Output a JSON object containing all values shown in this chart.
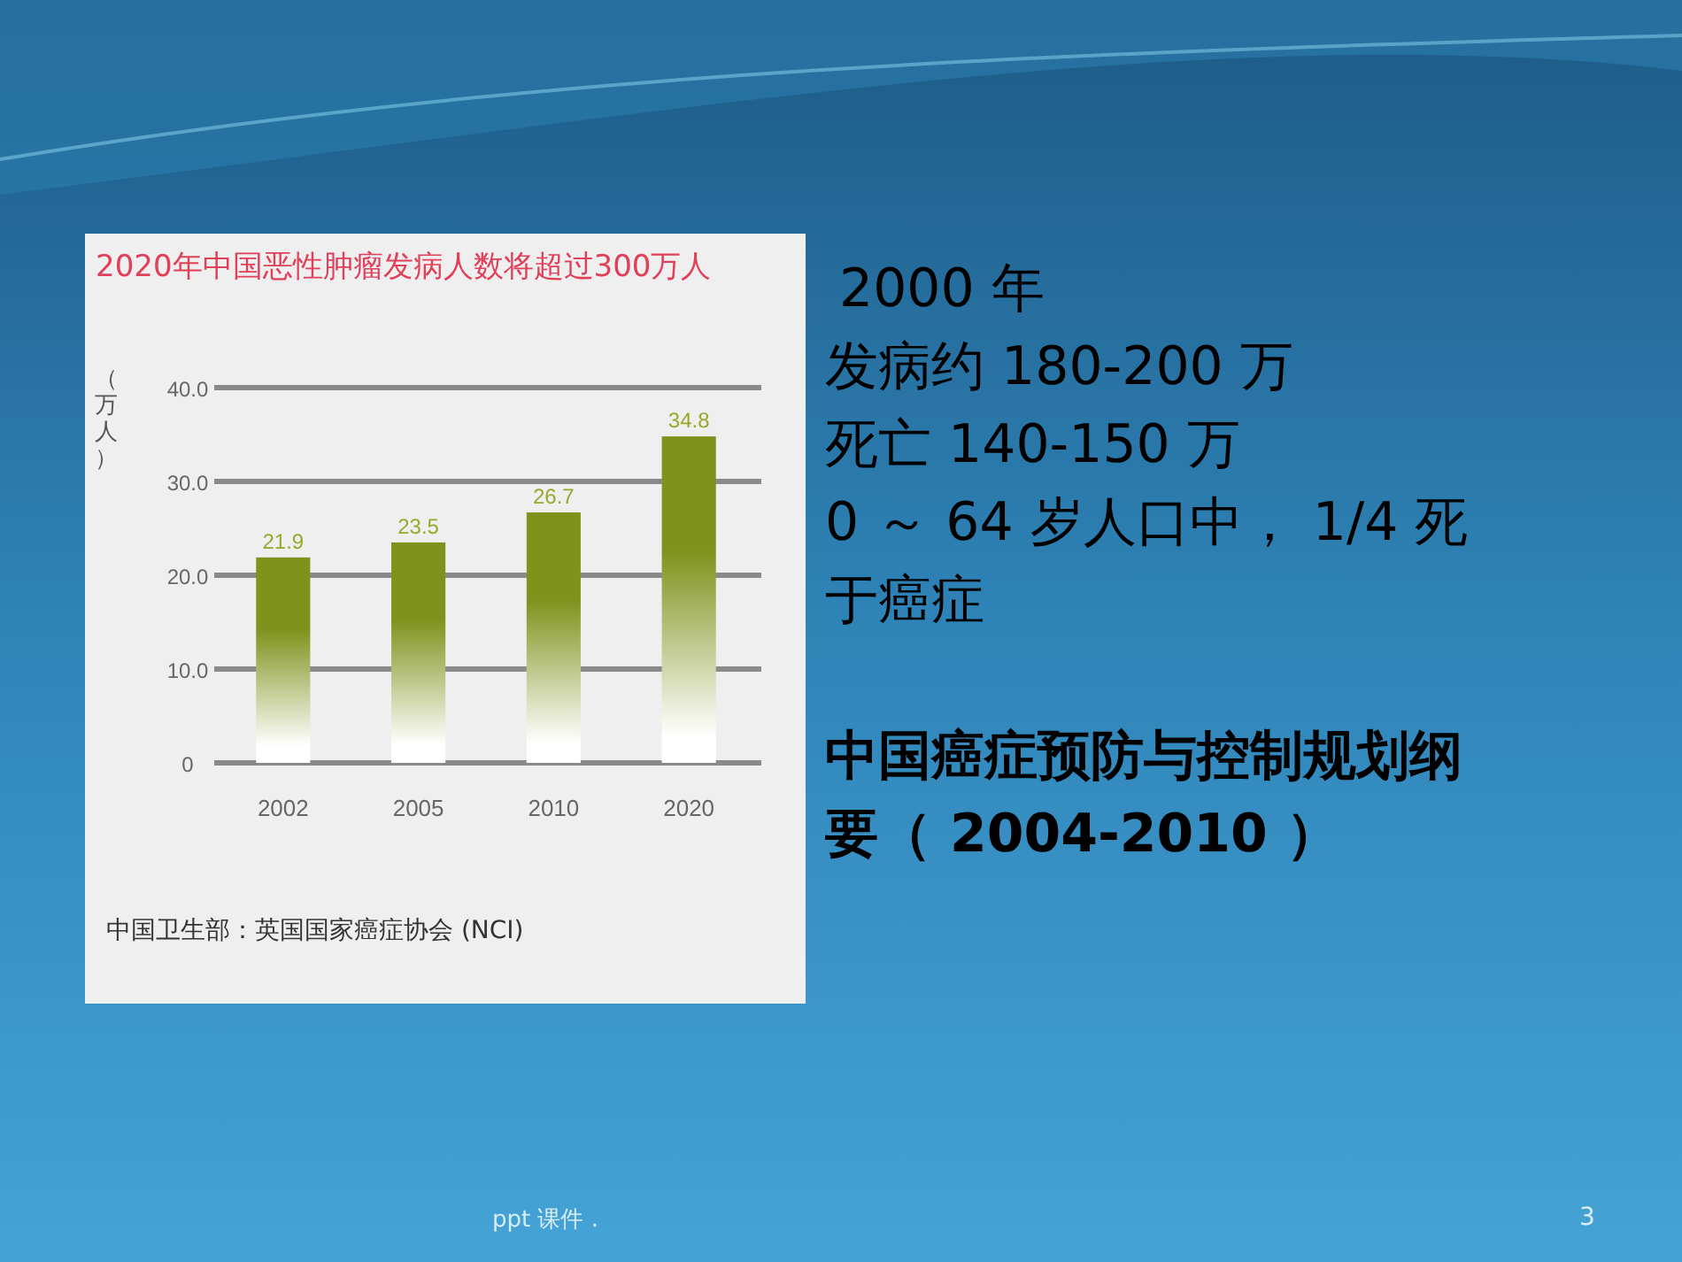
{
  "chart_data": [
    {
      "type": "bar",
      "title": "2020年中国恶性肿瘤发病人数将超过300万人",
      "ylabel": "（万人）",
      "categories": [
        "2002",
        "2005",
        "2010",
        "2020"
      ],
      "values": [
        21.9,
        23.5,
        26.7,
        34.8
      ],
      "color": "#7f921c",
      "ylim": [
        0,
        40
      ],
      "yticks": [
        0,
        {
          "value": 10,
          "label": "10.0"
        },
        {
          "value": 20,
          "label": "20.0"
        },
        {
          "value": 30,
          "label": "30.0"
        },
        {
          "value": 40,
          "label": "40.0"
        }
      ],
      "grid": "y",
      "data_labels": true,
      "annotations": [
        "中国卫生部：英国国家癌症协会 (NCI)"
      ]
    },
    {
      "type": "other",
      "annotations": [
        "2000 年",
        "发病约 180-200 万",
        "死亡 140-150 万",
        "0 ～ 64 岁人口中， 1/4 死于癌症",
        "中国癌症预防与控制规划纲要（ 2004-2010 ）",
        "ppt 课件 .",
        "3"
      ]
    }
  ]
}
